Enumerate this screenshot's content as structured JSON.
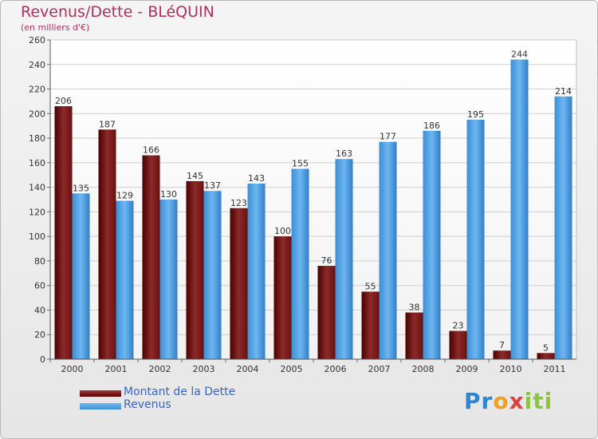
{
  "chart_data": {
    "type": "bar",
    "title": "Revenus/Dette - BLéQUIN",
    "subtitle": "(en milliers d'€)",
    "categories": [
      "2000",
      "2001",
      "2002",
      "2003",
      "2004",
      "2005",
      "2006",
      "2007",
      "2008",
      "2009",
      "2010",
      "2011"
    ],
    "series": [
      {
        "name": "Montant de la Dette",
        "color": "#7a1a1a",
        "values": [
          206,
          187,
          166,
          145,
          123,
          100,
          76,
          55,
          38,
          23,
          7,
          5
        ]
      },
      {
        "name": "Revenus",
        "color": "#4a9fe3",
        "values": [
          135,
          129,
          130,
          137,
          143,
          155,
          163,
          177,
          186,
          195,
          244,
          214
        ]
      }
    ],
    "ylim": [
      0,
      260
    ],
    "yticks": [
      0,
      20,
      40,
      60,
      80,
      100,
      120,
      140,
      160,
      180,
      200,
      220,
      240,
      260
    ],
    "grid": true,
    "legend": "bottom-left",
    "data_labels": true
  },
  "logo": {
    "text": "Proxiti"
  }
}
